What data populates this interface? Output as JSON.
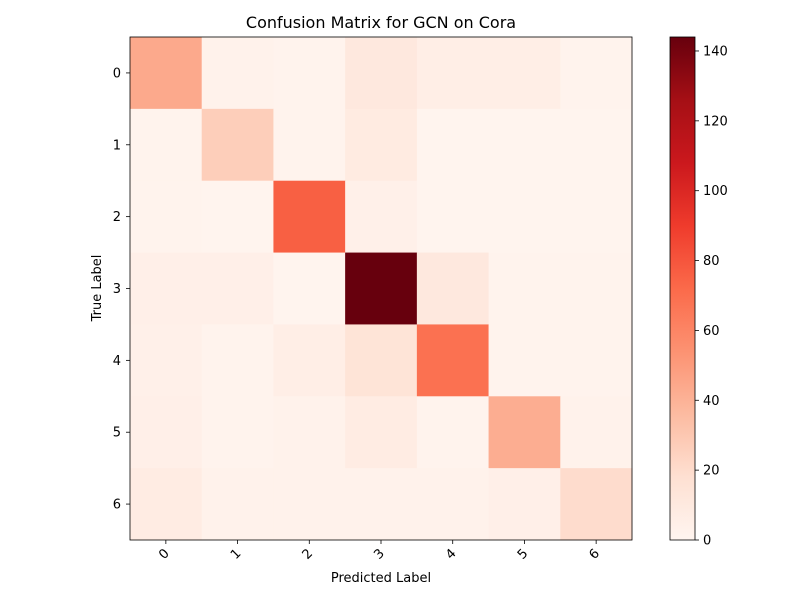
{
  "chart_data": {
    "type": "heatmap",
    "title": "Confusion Matrix for GCN on Cora",
    "xlabel": "Predicted Label",
    "ylabel": "True Label",
    "x_categories": [
      "0",
      "1",
      "2",
      "3",
      "4",
      "5",
      "6"
    ],
    "y_categories": [
      "0",
      "1",
      "2",
      "3",
      "4",
      "5",
      "6"
    ],
    "values": [
      [
        44,
        3,
        2,
        11,
        6,
        6,
        2
      ],
      [
        2,
        27,
        2,
        9,
        1,
        1,
        1
      ],
      [
        2,
        1,
        76,
        4,
        1,
        1,
        1
      ],
      [
        5,
        5,
        1,
        144,
        11,
        2,
        2
      ],
      [
        4,
        2,
        6,
        15,
        69,
        2,
        2
      ],
      [
        5,
        2,
        3,
        8,
        2,
        42,
        3
      ],
      [
        8,
        3,
        3,
        3,
        3,
        5,
        20
      ]
    ],
    "colormap": "Reds",
    "colorbar": {
      "min": 0,
      "max": 144,
      "ticks": [
        0,
        20,
        40,
        60,
        80,
        100,
        120,
        140
      ]
    },
    "x_tick_rotation_deg": 45,
    "grid": false
  }
}
